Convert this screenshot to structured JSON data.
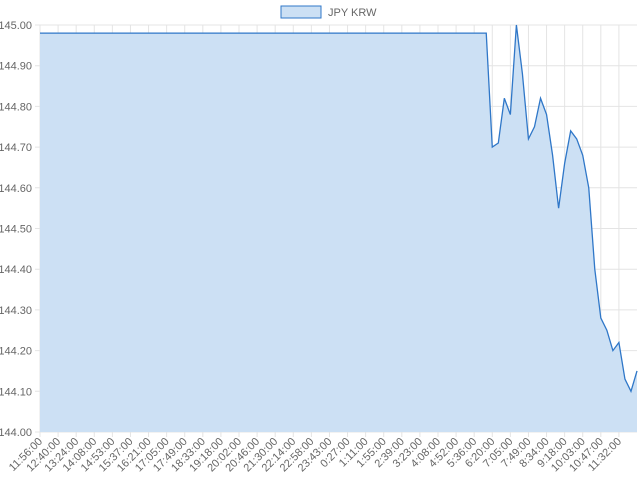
{
  "chart_data": {
    "type": "area",
    "categories": [
      "11:56:00",
      null,
      null,
      "12:40:00",
      null,
      null,
      "13:24:00",
      null,
      null,
      "14:08:00",
      null,
      null,
      "14:53:00",
      null,
      null,
      "15:37:00",
      null,
      null,
      "16:21:00",
      null,
      null,
      "17:05:00",
      null,
      null,
      "17:49:00",
      null,
      null,
      "18:33:00",
      null,
      null,
      "19:18:00",
      null,
      null,
      "20:02:00",
      null,
      null,
      "20:46:00",
      null,
      null,
      "21:30:00",
      null,
      null,
      "22:14:00",
      null,
      null,
      "22:58:00",
      null,
      null,
      "23:43:00",
      null,
      null,
      "0:27:00",
      null,
      null,
      "1:11:00",
      null,
      null,
      "1:55:00",
      null,
      null,
      "2:39:00",
      null,
      null,
      "3:23:00",
      null,
      null,
      "4:08:00",
      null,
      null,
      "4:52:00",
      null,
      null,
      "5:36:00",
      null,
      null,
      "6:20:00",
      null,
      null,
      "7:05:00",
      null,
      null,
      "7:49:00",
      null,
      null,
      "8:34:00",
      null,
      null,
      "9:18:00",
      null,
      null,
      "10:03:00",
      null,
      null,
      "10:47:00",
      null,
      null,
      "11:32:00",
      null,
      null,
      null
    ],
    "series": [
      {
        "name": "JPY KRW",
        "color": "#2f77c8",
        "fill": "#cce0f4",
        "values": [
          144.98,
          144.98,
          144.98,
          144.98,
          144.98,
          144.98,
          144.98,
          144.98,
          144.98,
          144.98,
          144.98,
          144.98,
          144.98,
          144.98,
          144.98,
          144.98,
          144.98,
          144.98,
          144.98,
          144.98,
          144.98,
          144.98,
          144.98,
          144.98,
          144.98,
          144.98,
          144.98,
          144.98,
          144.98,
          144.98,
          144.98,
          144.98,
          144.98,
          144.98,
          144.98,
          144.98,
          144.98,
          144.98,
          144.98,
          144.98,
          144.98,
          144.98,
          144.98,
          144.98,
          144.98,
          144.98,
          144.98,
          144.98,
          144.98,
          144.98,
          144.98,
          144.98,
          144.98,
          144.98,
          144.98,
          144.98,
          144.98,
          144.98,
          144.98,
          144.98,
          144.98,
          144.98,
          144.98,
          144.98,
          144.98,
          144.98,
          144.98,
          144.98,
          144.98,
          144.98,
          144.98,
          144.98,
          144.98,
          144.98,
          144.98,
          144.7,
          144.71,
          144.82,
          144.78,
          145.0,
          144.88,
          144.72,
          144.75,
          144.82,
          144.78,
          144.68,
          144.55,
          144.66,
          144.74,
          144.72,
          144.68,
          144.6,
          144.4,
          144.28,
          144.25,
          144.2,
          144.22,
          144.13,
          144.1,
          144.15
        ]
      }
    ],
    "ylim": [
      144,
      145
    ],
    "yticks": [
      {
        "value": 144,
        "label": "144.00"
      },
      {
        "value": 144.1,
        "label": "144.10"
      },
      {
        "value": 144.2,
        "label": "144.20"
      },
      {
        "value": 144.3,
        "label": "144.30"
      },
      {
        "value": 144.4,
        "label": "144.40"
      },
      {
        "value": 144.5,
        "label": "144.50"
      },
      {
        "value": 144.6,
        "label": "144.60"
      },
      {
        "value": 144.7,
        "label": "144.70"
      },
      {
        "value": 144.8,
        "label": "144.80"
      },
      {
        "value": 144.9,
        "label": "144.90"
      },
      {
        "value": 145,
        "label": "145.00"
      }
    ],
    "grid": true,
    "legend": "top"
  }
}
